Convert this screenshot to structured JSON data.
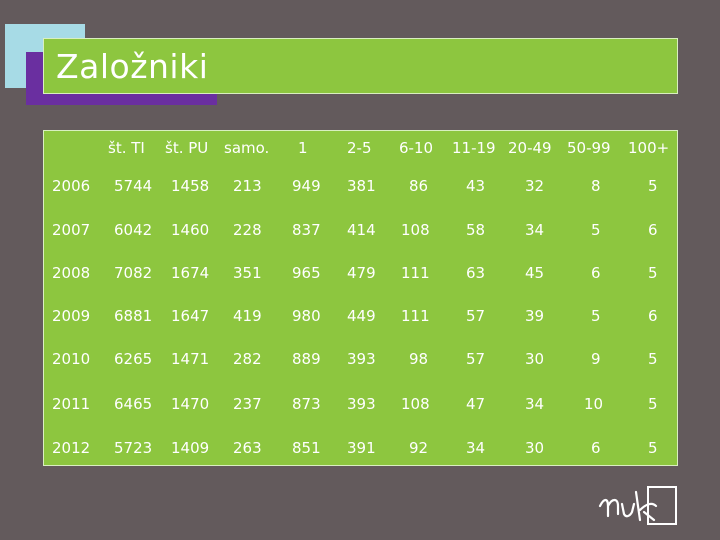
{
  "slide": {
    "title": "Založniki"
  },
  "table": {
    "headers": [
      "št. TI",
      "št. PU",
      "samo.",
      "1",
      "2-5",
      "6-10",
      "11-19",
      "20-49",
      "50-99",
      "100+"
    ],
    "rows": [
      {
        "year": "2006",
        "values": [
          "5744",
          "1458",
          "213",
          "949",
          "381",
          "86",
          "43",
          "32",
          "8",
          "5"
        ]
      },
      {
        "year": "2007",
        "values": [
          "6042",
          "1460",
          "228",
          "837",
          "414",
          "108",
          "58",
          "34",
          "5",
          "6"
        ]
      },
      {
        "year": "2008",
        "values": [
          "7082",
          "1674",
          "351",
          "965",
          "479",
          "111",
          "63",
          "45",
          "6",
          "5"
        ]
      },
      {
        "year": "2009",
        "values": [
          "6881",
          "1647",
          "419",
          "980",
          "449",
          "111",
          "57",
          "39",
          "5",
          "6"
        ]
      },
      {
        "year": "2010",
        "values": [
          "6265",
          "1471",
          "282",
          "889",
          "393",
          "98",
          "57",
          "30",
          "9",
          "5"
        ]
      },
      {
        "year": "2011",
        "values": [
          "6465",
          "1470",
          "237",
          "873",
          "393",
          "108",
          "47",
          "34",
          "10",
          "5"
        ]
      },
      {
        "year": "2012",
        "values": [
          "5723",
          "1409",
          "263",
          "851",
          "391",
          "92",
          "34",
          "30",
          "6",
          "5"
        ]
      }
    ]
  },
  "colors": {
    "background": "#635a5c",
    "accent_green": "#8dc63f",
    "accent_purple": "#6a2fa0",
    "accent_blue": "#a7dbe6"
  },
  "logo": {
    "icon": "nuk-logo"
  }
}
